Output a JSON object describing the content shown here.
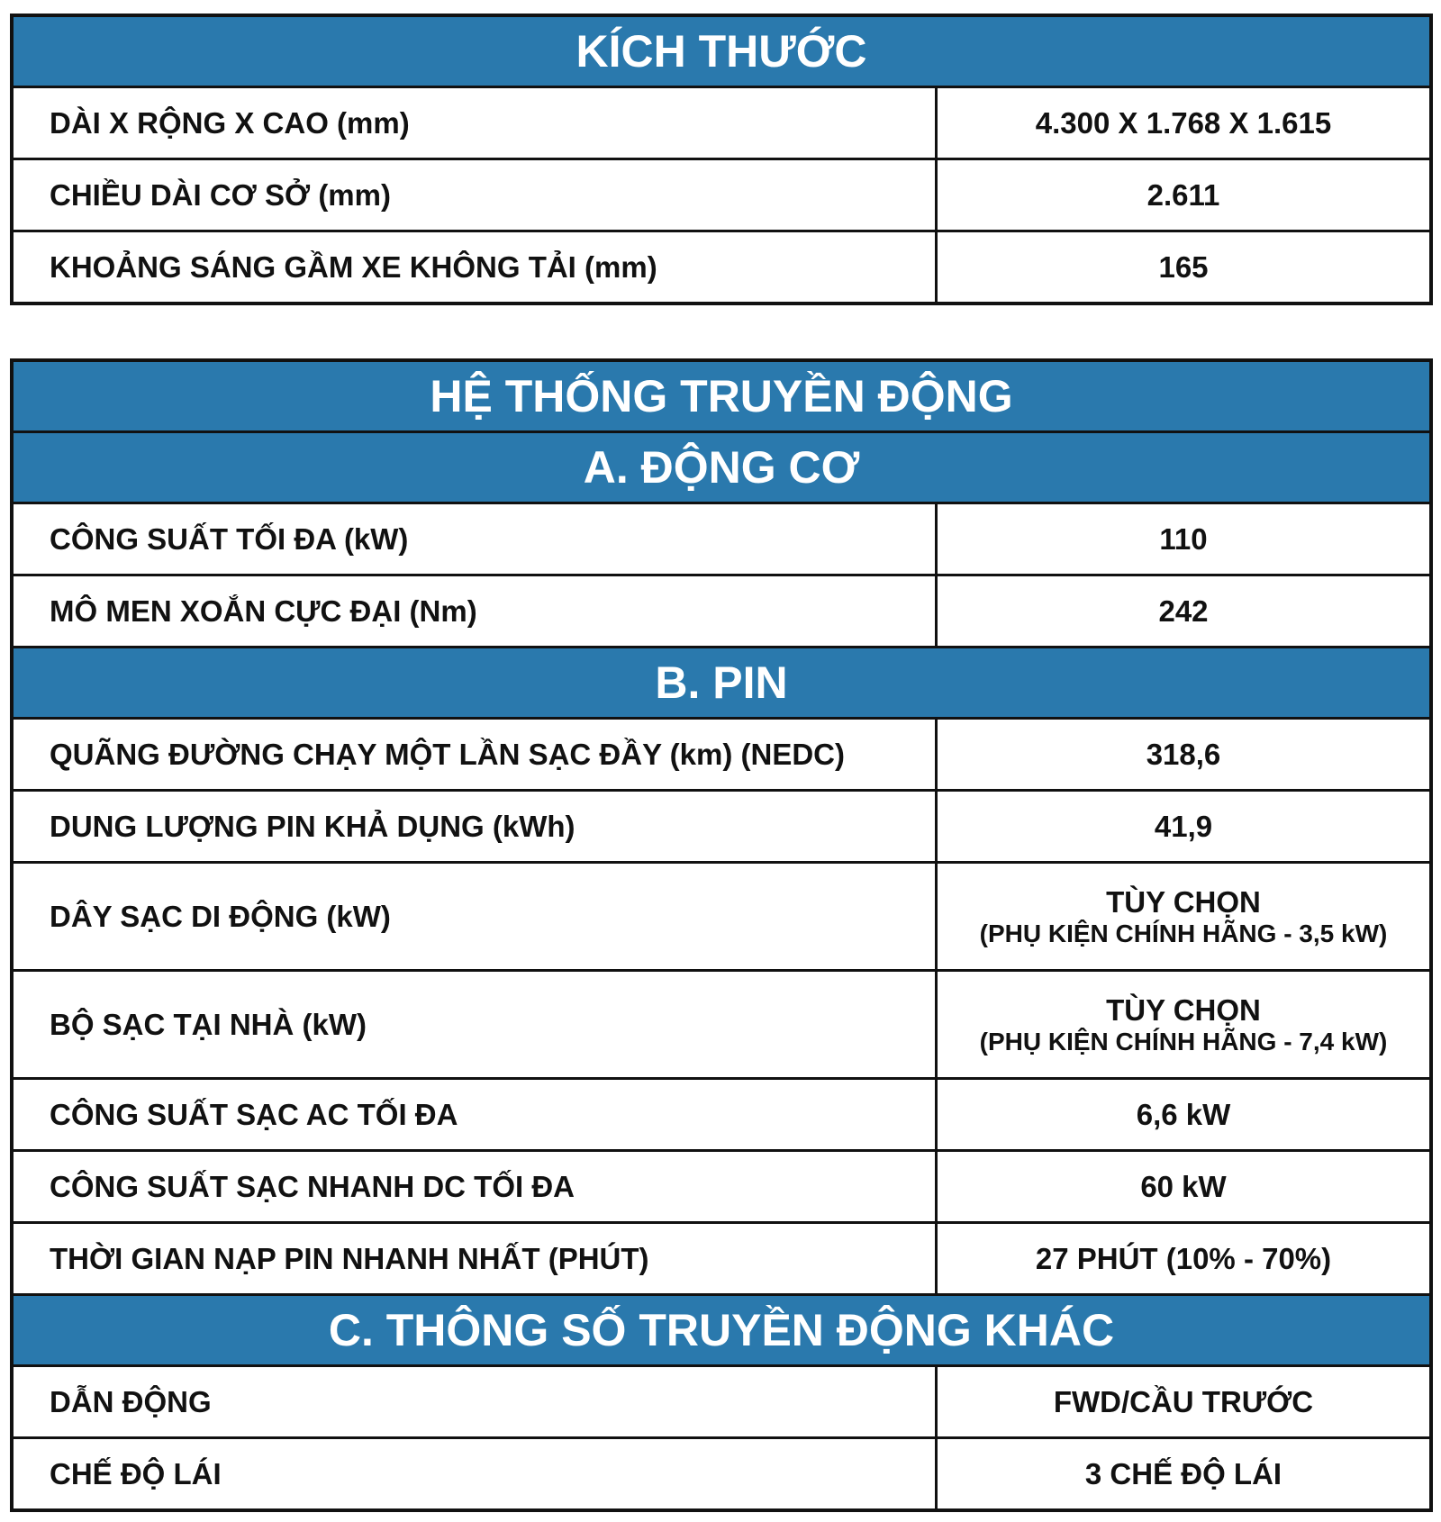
{
  "dimensions": {
    "title": "KÍCH THƯỚC",
    "rows": [
      {
        "label": "DÀI X RỘNG X CAO (mm)",
        "value": "4.300 X 1.768 X 1.615"
      },
      {
        "label": "CHIỀU DÀI CƠ SỞ (mm)",
        "value": "2.611"
      },
      {
        "label": "KHOẢNG SÁNG GẦM XE KHÔNG TẢI (mm)",
        "value": "165"
      }
    ]
  },
  "powertrain": {
    "title": "HỆ THỐNG TRUYỀN ĐỘNG",
    "motor": {
      "title": "A. ĐỘNG CƠ",
      "rows": [
        {
          "label": "CÔNG SUẤT TỐI ĐA (kW)",
          "value": "110"
        },
        {
          "label": "MÔ MEN XOẮN CỰC ĐẠI (Nm)",
          "value": "242"
        }
      ]
    },
    "battery": {
      "title": "B. PIN",
      "rows": [
        {
          "label": "QUÃNG ĐƯỜNG CHẠY MỘT LẦN SẠC ĐẦY (km) (NEDC)",
          "value": "318,6"
        },
        {
          "label": "DUNG LƯỢNG PIN KHẢ DỤNG (kWh)",
          "value": "41,9"
        },
        {
          "label": "DÂY SẠC DI ĐỘNG (kW)",
          "value": "TÙY CHỌN",
          "note": "(PHỤ KIỆN CHÍNH HÃNG - 3,5 kW)"
        },
        {
          "label": "BỘ SẠC TẠI NHÀ (kW)",
          "value": "TÙY CHỌN",
          "note": "(PHỤ KIỆN CHÍNH HÃNG - 7,4 kW)"
        },
        {
          "label": "CÔNG SUẤT SẠC AC TỐI ĐA",
          "value": "6,6 kW"
        },
        {
          "label": "CÔNG SUẤT SẠC NHANH DC TỐI ĐA",
          "value": "60 kW"
        },
        {
          "label": "THỜI GIAN NẠP PIN NHANH NHẤT (PHÚT)",
          "value": "27 PHÚT (10% - 70%)"
        }
      ]
    },
    "other": {
      "title": "C. THÔNG SỐ TRUYỀN ĐỘNG KHÁC",
      "rows": [
        {
          "label": "DẪN ĐỘNG",
          "value": "FWD/CẦU TRƯỚC"
        },
        {
          "label": "CHẾ ĐỘ LÁI",
          "value": "3 CHẾ ĐỘ LÁI"
        }
      ]
    }
  },
  "colors": {
    "header": "#2a79ad",
    "border": "#111111"
  }
}
